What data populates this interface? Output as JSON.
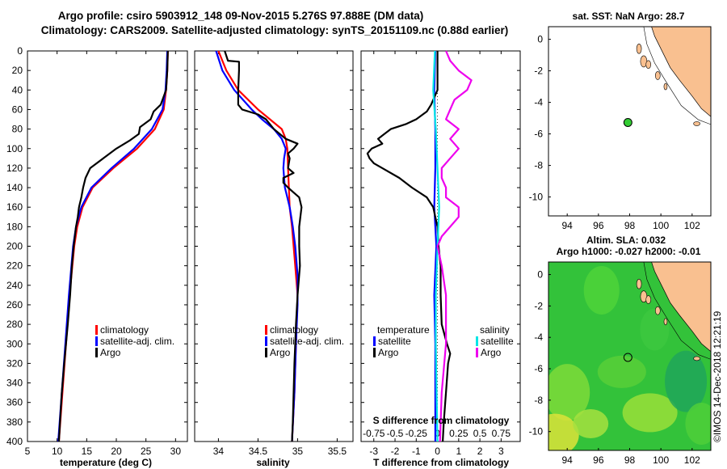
{
  "title_line1": "Argo profile: csiro 5903912_148 09-Nov-2015 5.276S 97.888E (DM data)",
  "title_line2": "Climatology: CARS2009. Satellite-adjusted climatology: synTS_20151109.nc (0.88d earlier)",
  "colors": {
    "climatology": "#ff0000",
    "satellite": "#0000ff",
    "argo": "#000000",
    "sal_satellite": "#00e5e5",
    "sal_argo": "#ee00ee",
    "land": "#f9c090"
  },
  "depth_ticks": [
    0,
    20,
    40,
    60,
    80,
    100,
    120,
    140,
    160,
    180,
    200,
    220,
    240,
    260,
    280,
    300,
    320,
    340,
    360,
    380,
    400
  ],
  "legend_labels": {
    "climatology": "climatology",
    "satellite_adj": "satellite-adj. clim.",
    "argo": "Argo"
  },
  "legend3": {
    "temperature": "temperature",
    "salinity": "salinity",
    "satellite": "satellite",
    "argo": "Argo"
  },
  "sdiff_label": "S difference from climatology",
  "sst_title": "sat. SST: NaN Argo: 28.7",
  "sla_title_line1": "Altim. SLA: 0.032",
  "sla_title_line2": "Argo h1000: -0.027 h2000: -0.01",
  "credit": "©IMOS 14-Dec-2018 12:21:19",
  "map_lon_ticks": [
    "94",
    "96",
    "98",
    "100",
    "102"
  ],
  "map_lat_ticks": [
    "0",
    "-2",
    "-4",
    "-6",
    "-8",
    "-10"
  ],
  "chart_data": [
    {
      "type": "line",
      "name": "temperature",
      "xlabel": "temperature (deg C)",
      "ylabel": "depth (m)",
      "xlim": [
        5,
        32
      ],
      "ylim": [
        400,
        0
      ],
      "xticks": [
        5,
        10,
        15,
        20,
        25,
        30
      ],
      "yticks": [
        0,
        20,
        40,
        60,
        80,
        100,
        120,
        140,
        160,
        180,
        200,
        220,
        240,
        260,
        280,
        300,
        320,
        340,
        360,
        380,
        400
      ],
      "series": [
        {
          "name": "climatology",
          "color": "#ff0000",
          "depth": [
            0,
            20,
            40,
            60,
            80,
            100,
            120,
            140,
            160,
            180,
            200,
            250,
            300,
            350,
            400
          ],
          "values": [
            28.7,
            28.6,
            28.4,
            28.0,
            26.5,
            23.5,
            19.5,
            16.0,
            14.3,
            13.4,
            12.9,
            12.1,
            11.5,
            10.9,
            10.3
          ]
        },
        {
          "name": "satellite-adj. clim.",
          "color": "#0000ff",
          "depth": [
            0,
            20,
            40,
            60,
            80,
            100,
            120,
            140,
            160,
            180,
            200,
            250,
            300,
            350,
            400
          ],
          "values": [
            28.6,
            28.5,
            28.3,
            27.8,
            26.0,
            23.0,
            19.2,
            15.8,
            14.1,
            13.2,
            12.7,
            12.0,
            11.4,
            10.8,
            10.2
          ]
        },
        {
          "name": "Argo",
          "color": "#000000",
          "depth": [
            0,
            20,
            40,
            55,
            62,
            70,
            78,
            85,
            92,
            100,
            110,
            120,
            130,
            140,
            150,
            160,
            170,
            180,
            200,
            220,
            250,
            280,
            300,
            320,
            350,
            380,
            400
          ],
          "values": [
            28.7,
            28.6,
            28.4,
            27.5,
            26.3,
            25.8,
            24.0,
            23.8,
            22.2,
            20.0,
            17.8,
            15.6,
            14.8,
            14.4,
            14.1,
            13.7,
            13.5,
            13.2,
            12.8,
            12.5,
            12.2,
            11.8,
            11.5,
            11.2,
            10.8,
            10.5,
            10.3
          ]
        }
      ]
    },
    {
      "type": "line",
      "name": "salinity",
      "xlabel": "salinity",
      "ylabel": "depth (m)",
      "xlim": [
        33.7,
        35.7
      ],
      "ylim": [
        400,
        0
      ],
      "xticks": [
        34,
        34.5,
        35,
        35.5
      ],
      "xticklabels": [
        "34",
        "34.5",
        "35",
        "35.5"
      ],
      "series": [
        {
          "name": "climatology",
          "color": "#ff0000",
          "depth": [
            0,
            20,
            40,
            60,
            70,
            80,
            90,
            100,
            120,
            140,
            160,
            180,
            200,
            220,
            250,
            300,
            350,
            400
          ],
          "values": [
            34.0,
            34.1,
            34.25,
            34.5,
            34.65,
            34.8,
            34.85,
            34.87,
            34.88,
            34.89,
            34.9,
            34.93,
            34.95,
            34.97,
            35.0,
            34.98,
            34.96,
            34.93
          ]
        },
        {
          "name": "satellite-adj. clim.",
          "color": "#0000ff",
          "depth": [
            0,
            20,
            40,
            60,
            70,
            80,
            90,
            100,
            110,
            120,
            130,
            140,
            150,
            160,
            170,
            180,
            200,
            230,
            260,
            300,
            350,
            400
          ],
          "values": [
            33.97,
            34.05,
            34.2,
            34.42,
            34.55,
            34.7,
            34.8,
            34.85,
            34.83,
            34.82,
            34.83,
            34.84,
            34.87,
            34.9,
            34.92,
            34.94,
            34.97,
            35.0,
            35.0,
            34.98,
            34.96,
            34.93
          ]
        },
        {
          "name": "Argo",
          "color": "#000000",
          "depth": [
            0,
            10,
            11,
            20,
            40,
            55,
            60,
            65,
            70,
            80,
            90,
            95,
            100,
            105,
            110,
            120,
            125,
            130,
            135,
            140,
            145,
            150,
            160,
            180,
            200,
            220,
            250,
            280,
            300,
            320,
            350,
            380,
            400
          ],
          "values": [
            34.08,
            34.12,
            34.26,
            34.26,
            34.25,
            34.25,
            34.3,
            34.5,
            34.6,
            34.7,
            34.85,
            35.0,
            34.95,
            34.88,
            34.9,
            34.88,
            34.95,
            34.82,
            34.82,
            34.88,
            34.95,
            35.02,
            35.05,
            35.02,
            35.02,
            35.03,
            35.0,
            34.98,
            34.97,
            34.96,
            34.95,
            34.94,
            34.93
          ]
        }
      ]
    },
    {
      "type": "line",
      "name": "differences from climatology",
      "xlabel": "T difference from climatology",
      "ylabel": "depth (m)",
      "xlim": [
        -3.6,
        3.9
      ],
      "ylim": [
        400,
        0
      ],
      "xticks": [
        -3,
        -2,
        -1,
        0,
        1,
        2,
        3
      ],
      "xticklabels": [
        "-3",
        "-2",
        "-1",
        "0",
        "1",
        "2",
        "3"
      ],
      "top_axis_label": "S difference from climatology",
      "sxticks": [
        "-0.75",
        "-0.5",
        "-0.25",
        "0",
        "0.25",
        "0.5",
        "0.75"
      ],
      "series": [
        {
          "name": "temperature satellite",
          "color": "#0000ff",
          "depth": [
            0,
            40,
            80,
            120,
            160,
            180,
            200,
            250,
            300,
            350,
            400
          ],
          "values": [
            -0.1,
            -0.15,
            -0.1,
            -0.1,
            -0.15,
            -0.1,
            -0.05,
            -0.15,
            -0.1,
            -0.1,
            -0.1
          ]
        },
        {
          "name": "temperature Argo",
          "color": "#000000",
          "depth": [
            0,
            20,
            40,
            55,
            62,
            70,
            75,
            80,
            85,
            90,
            95,
            100,
            105,
            110,
            115,
            120,
            130,
            140,
            150,
            160,
            170,
            180,
            200,
            220,
            250,
            280,
            300,
            310,
            320,
            350,
            380,
            400
          ],
          "values": [
            0.0,
            0.0,
            0.0,
            -0.3,
            -0.5,
            -1.0,
            -1.5,
            -2.2,
            -2.5,
            -2.8,
            -2.6,
            -3.1,
            -3.3,
            -3.2,
            -3.0,
            -2.6,
            -1.8,
            -1.2,
            -0.5,
            -0.2,
            -0.1,
            0.0,
            0.05,
            0.15,
            0.15,
            0.2,
            0.45,
            0.6,
            0.5,
            0.4,
            0.3,
            0.25
          ]
        },
        {
          "name": "salinity satellite",
          "color": "#00e5e5",
          "depth": [
            0,
            40,
            80,
            120,
            160,
            200,
            250,
            300,
            350,
            400
          ],
          "values": [
            -0.03,
            -0.05,
            -0.02,
            0.0,
            0.02,
            0.0,
            -0.02,
            -0.02,
            -0.01,
            0.0
          ]
        },
        {
          "name": "salinity Argo",
          "color": "#ee00ee",
          "depth": [
            0,
            10,
            20,
            30,
            40,
            50,
            60,
            70,
            80,
            90,
            100,
            110,
            120,
            130,
            140,
            150,
            160,
            170,
            180,
            190,
            200,
            220,
            250,
            280,
            300,
            350,
            400
          ],
          "values": [
            0.1,
            0.15,
            0.25,
            0.4,
            0.35,
            0.2,
            0.15,
            0.1,
            0.25,
            0.15,
            0.25,
            0.15,
            0.05,
            0.05,
            0.1,
            0.1,
            0.25,
            0.25,
            0.15,
            0.05,
            0.0,
            0.05,
            0.1,
            0.1,
            0.1,
            0.05,
            0.03
          ]
        }
      ]
    },
    {
      "type": "scatter",
      "name": "sst map",
      "title": "sat. SST: NaN Argo: 28.7",
      "xlim": [
        92.8,
        103.2
      ],
      "ylim": [
        -11.2,
        0.8
      ],
      "points": [
        {
          "lon": 97.888,
          "lat": -5.276,
          "label": "Argo"
        }
      ]
    },
    {
      "type": "heatmap",
      "name": "sla map",
      "title": "Altim. SLA: 0.032",
      "subtitle": "Argo h1000: -0.027 h2000: -0.01",
      "xlim": [
        92.8,
        103.2
      ],
      "ylim": [
        -11.2,
        0.8
      ],
      "points": [
        {
          "lon": 97.888,
          "lat": -5.276,
          "label": "Argo"
        }
      ]
    }
  ]
}
